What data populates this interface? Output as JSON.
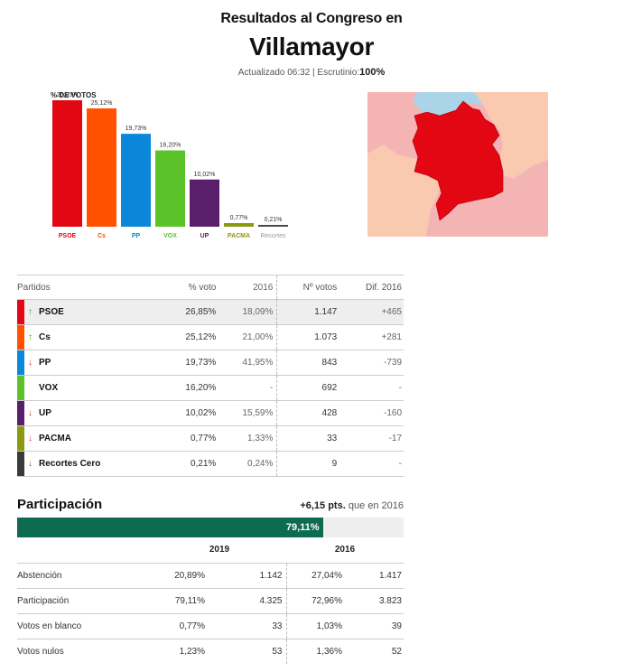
{
  "header": {
    "pre_title": "Resultados al Congreso en",
    "town": "Villamayor",
    "updated_label": "Actualizado 06:32",
    "scrutiny_label": "Escrutinio:",
    "scrutiny_value": "100%"
  },
  "chart_data": {
    "type": "bar",
    "ylabel": "% DE VOTOS",
    "categories": [
      "PSOE",
      "Cs",
      "PP",
      "VOX",
      "UP",
      "PACMA",
      "Recortes"
    ],
    "values": [
      26.85,
      25.12,
      19.73,
      16.2,
      10.02,
      0.77,
      0.21
    ],
    "value_labels": [
      "26,85%",
      "25,12%",
      "19,73%",
      "16,20%",
      "10,02%",
      "0,77%",
      "0,21%"
    ],
    "colors": [
      "#e30613",
      "#ff5100",
      "#0a87d9",
      "#5bc229",
      "#5a1f6b",
      "#8a9a10",
      "#4a4a4a"
    ],
    "label_colors": [
      "#e30613",
      "#ff5100",
      "#0a87d9",
      "#5bc229",
      "#5a1f6b",
      "#8a9a10",
      "#999999"
    ],
    "ylim": [
      0,
      30
    ]
  },
  "map": {
    "colors": {
      "background": "#f5b4b4",
      "neighbor_light": "#f9c9b0",
      "neighbor_blue": "#aad4e8",
      "town": "#e30613"
    }
  },
  "results": {
    "headers": {
      "party": "Partidos",
      "pct": "% voto",
      "y2016": "2016",
      "votes": "Nº votos",
      "dif": "Dif. 2016"
    },
    "rows": [
      {
        "party": "PSOE",
        "color": "#e30613",
        "trend": "up",
        "arrow": "↑",
        "pct": "26,85%",
        "y2016": "18,09%",
        "votes": "1.147",
        "dif": "+465",
        "highlight": true
      },
      {
        "party": "Cs",
        "color": "#ff5100",
        "trend": "up",
        "arrow": "↑",
        "pct": "25,12%",
        "y2016": "21,00%",
        "votes": "1.073",
        "dif": "+281",
        "highlight": false
      },
      {
        "party": "PP",
        "color": "#0a87d9",
        "trend": "down",
        "arrow": "↓",
        "pct": "19,73%",
        "y2016": "41,95%",
        "votes": "843",
        "dif": "-739",
        "highlight": false
      },
      {
        "party": "VOX",
        "color": "#5bc229",
        "trend": "none",
        "arrow": "",
        "pct": "16,20%",
        "y2016": "-",
        "votes": "692",
        "dif": "-",
        "highlight": false
      },
      {
        "party": "UP",
        "color": "#5a1f6b",
        "trend": "down",
        "arrow": "↓",
        "pct": "10,02%",
        "y2016": "15,59%",
        "votes": "428",
        "dif": "-160",
        "highlight": false
      },
      {
        "party": "PACMA",
        "color": "#8a9a10",
        "trend": "down",
        "arrow": "↓",
        "pct": "0,77%",
        "y2016": "1,33%",
        "votes": "33",
        "dif": "-17",
        "highlight": false
      },
      {
        "party": "Recortes Cero",
        "color": "#3a3a3a",
        "trend": "down",
        "arrow": "↓",
        "pct": "0,21%",
        "y2016": "0,24%",
        "votes": "9",
        "dif": "-",
        "highlight": false
      }
    ]
  },
  "participation": {
    "title": "Participación",
    "diff_value": "+6,15 pts.",
    "diff_text": "que en 2016",
    "bar_value": 79.11,
    "bar_label": "79,11%",
    "bar_color": "#0d6b4f",
    "years": [
      "2019",
      "2016"
    ],
    "rows": [
      {
        "label": "Abstención",
        "pct2019": "20,89%",
        "n2019": "1.142",
        "pct2016": "27,04%",
        "n2016": "1.417"
      },
      {
        "label": "Participación",
        "pct2019": "79,11%",
        "n2019": "4.325",
        "pct2016": "72,96%",
        "n2016": "3.823"
      },
      {
        "label": "Votos en blanco",
        "pct2019": "0,77%",
        "n2019": "33",
        "pct2016": "1,03%",
        "n2016": "39"
      },
      {
        "label": "Votos nulos",
        "pct2019": "1,23%",
        "n2019": "53",
        "pct2016": "1,36%",
        "n2016": "52"
      }
    ]
  }
}
